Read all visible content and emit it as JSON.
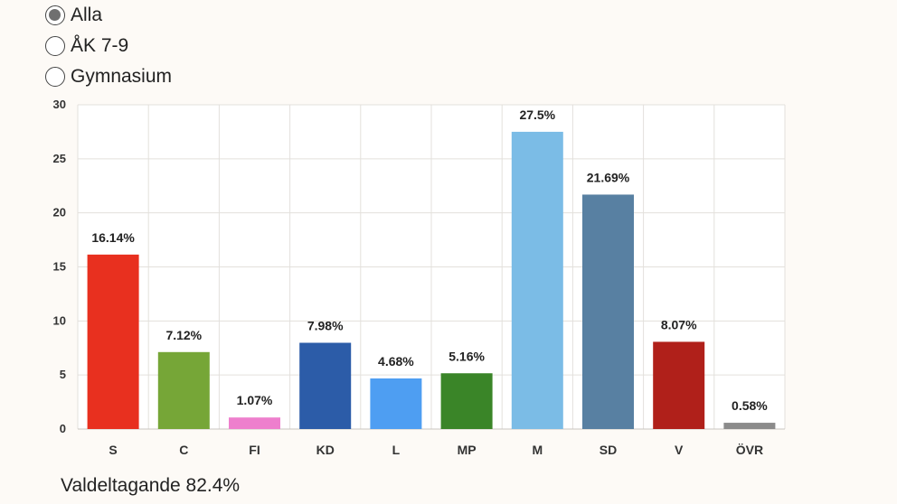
{
  "filters": {
    "options": [
      {
        "label": "Alla",
        "checked": true
      },
      {
        "label": "ÅK 7-9",
        "checked": false
      },
      {
        "label": "Gymnasium",
        "checked": false
      }
    ]
  },
  "chart_data": {
    "type": "bar",
    "title": "",
    "xlabel": "",
    "ylabel": "",
    "ylim": [
      0,
      30
    ],
    "yticks": [
      0,
      5,
      10,
      15,
      20,
      25,
      30
    ],
    "grid": true,
    "categories": [
      "S",
      "C",
      "FI",
      "KD",
      "L",
      "MP",
      "M",
      "SD",
      "V",
      "ÖVR"
    ],
    "values": [
      16.14,
      7.12,
      1.07,
      7.98,
      4.68,
      5.16,
      27.5,
      21.69,
      8.07,
      0.58
    ],
    "value_labels": [
      "16.14%",
      "7.12%",
      "1.07%",
      "7.98%",
      "4.68%",
      "5.16%",
      "27.5%",
      "21.69%",
      "8.07%",
      "0.58%"
    ],
    "colors": [
      "#e8301f",
      "#76a637",
      "#ee7fcd",
      "#2c5ca8",
      "#4e9ef2",
      "#3a8528",
      "#7bbce6",
      "#5880a2",
      "#b0201a",
      "#8b8b8b"
    ]
  },
  "footer": {
    "turnout": "Valdeltagande 82.4%"
  }
}
